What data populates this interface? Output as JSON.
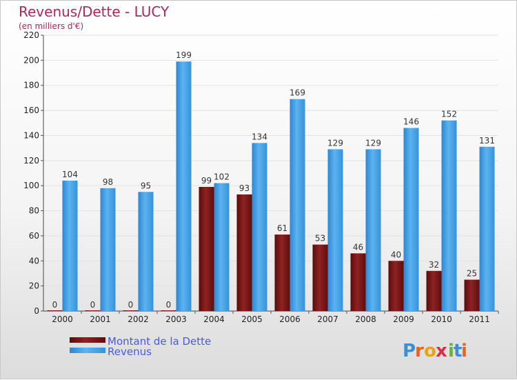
{
  "chart_data": {
    "type": "bar",
    "title": "Revenus/Dette - LUCY",
    "subtitle": "(en milliers d'€)",
    "categories": [
      "2000",
      "2001",
      "2002",
      "2003",
      "2004",
      "2005",
      "2006",
      "2007",
      "2008",
      "2009",
      "2010",
      "2011"
    ],
    "series": [
      {
        "name": "Montant de la Dette",
        "color": "#7a1414",
        "values": [
          0,
          0,
          0,
          0,
          99,
          93,
          61,
          53,
          46,
          40,
          32,
          25
        ]
      },
      {
        "name": "Revenus",
        "color": "#4aa3e6",
        "values": [
          104,
          98,
          95,
          199,
          102,
          134,
          169,
          129,
          129,
          146,
          152,
          131
        ]
      }
    ],
    "ylim": [
      0,
      220
    ],
    "yticks": [
      0,
      20,
      40,
      60,
      80,
      100,
      120,
      140,
      160,
      180,
      200,
      220
    ],
    "grid": true,
    "legend_position": "bottom-left"
  },
  "logo": {
    "text": "Proxiti",
    "letter_colors": [
      "#3a8fd6",
      "#e0661c",
      "#e6a318",
      "#d92e45",
      "#6ab03a",
      "#3a8fd6",
      "#e0661c"
    ]
  }
}
